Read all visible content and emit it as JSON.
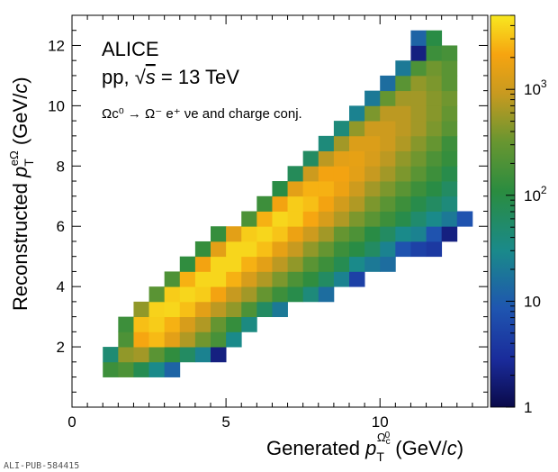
{
  "chart_data": {
    "type": "heatmap",
    "experiment": "ALICE",
    "system": "pp, √s = 13 TeV",
    "system_parts": {
      "prefix": "pp, ",
      "sqrt_symbol": "√",
      "var": "s",
      "suffix": " = 13 TeV"
    },
    "decay": "Ωc⁰ → Ω⁻ e⁺ νe and charge conj.",
    "xlabel": "Generated p_T^{Ωc⁰} (GeV/c)",
    "ylabel": "Reconstructed p_T^{eΩ} (GeV/c)",
    "xlabel_parts": {
      "pre": "Generated ",
      "p": "p",
      "sub": "T",
      "sup": "Ω",
      "supsub": "c",
      "supsup": "0",
      "post": " (GeV/",
      "c": "c",
      "close": ")"
    },
    "ylabel_parts": {
      "pre": "Reconstructed ",
      "p": "p",
      "sub": "T",
      "sup": "eΩ",
      "post": " (GeV/",
      "c": "c",
      "close": ")"
    },
    "xlim": [
      0,
      13.5
    ],
    "ylim": [
      0,
      13
    ],
    "x_ticks": [
      {
        "v": 0,
        "label": "0"
      },
      {
        "v": 5,
        "label": "5"
      },
      {
        "v": 10,
        "label": "10"
      }
    ],
    "y_ticks": [
      {
        "v": 2,
        "label": "2"
      },
      {
        "v": 4,
        "label": "4"
      },
      {
        "v": 6,
        "label": "6"
      },
      {
        "v": 8,
        "label": "8"
      },
      {
        "v": 10,
        "label": "10"
      },
      {
        "v": 12,
        "label": "12"
      }
    ],
    "z_scale": "log",
    "zlim": [
      1,
      5000
    ],
    "z_ticks": [
      {
        "v": 1,
        "label": "1"
      },
      {
        "v": 10,
        "label": "10"
      },
      {
        "v": 100,
        "label": "10",
        "exp": "2"
      },
      {
        "v": 1000,
        "label": "10",
        "exp": "3"
      }
    ],
    "bin_width_x": 0.5,
    "bin_width_y": 0.5,
    "x_bins_start": 1.0,
    "y_bins_start": 1.0,
    "rows": [
      {
        "y": 1.0,
        "x0": 1.0,
        "values": [
          150,
          200,
          80,
          30,
          12
        ]
      },
      {
        "y": 1.5,
        "x0": 1.0,
        "values": [
          45,
          500,
          600,
          250,
          120,
          60,
          25,
          2
        ]
      },
      {
        "y": 2.0,
        "x0": 1.5,
        "values": [
          200,
          2200,
          2800,
          1500,
          700,
          350,
          180,
          30
        ]
      },
      {
        "y": 2.5,
        "x0": 1.5,
        "values": [
          150,
          3000,
          3500,
          2500,
          1200,
          700,
          300,
          130,
          35
        ]
      },
      {
        "y": 3.0,
        "x0": 2.0,
        "values": [
          500,
          3800,
          4000,
          3000,
          1500,
          800,
          500,
          200,
          60,
          20
        ]
      },
      {
        "y": 3.5,
        "x0": 2.5,
        "values": [
          250,
          3500,
          4000,
          3500,
          2000,
          900,
          600,
          300,
          150,
          90,
          40,
          15
        ]
      },
      {
        "y": 4.0,
        "x0": 3.0,
        "values": [
          200,
          2500,
          4000,
          4000,
          2500,
          1200,
          700,
          400,
          200,
          120,
          60,
          25,
          5
        ]
      },
      {
        "y": 4.5,
        "x0": 3.5,
        "values": [
          120,
          2000,
          4000,
          4000,
          2500,
          1500,
          800,
          500,
          250,
          150,
          80,
          30,
          20,
          15
        ]
      },
      {
        "y": 5.0,
        "x0": 4.0,
        "values": [
          130,
          1500,
          4000,
          4000,
          3000,
          1600,
          900,
          500,
          300,
          150,
          100,
          60,
          25,
          8,
          5,
          4
        ]
      },
      {
        "y": 5.5,
        "x0": 4.5,
        "values": [
          130,
          1500,
          3500,
          4000,
          3200,
          1800,
          1000,
          600,
          300,
          200,
          100,
          60,
          30,
          25,
          8,
          2
        ]
      },
      {
        "y": 6.0,
        "x0": 5.5,
        "values": [
          200,
          2500,
          4000,
          3500,
          2200,
          1200,
          700,
          400,
          250,
          150,
          90,
          50,
          30,
          20,
          8
        ]
      },
      {
        "y": 6.5,
        "x0": 6.0,
        "values": [
          150,
          2000,
          3500,
          3000,
          2000,
          1100,
          700,
          400,
          250,
          150,
          90,
          60,
          40
        ]
      },
      {
        "y": 7.0,
        "x0": 6.5,
        "values": [
          100,
          1500,
          2500,
          2500,
          1800,
          1000,
          600,
          400,
          250,
          150,
          100,
          60
        ]
      },
      {
        "y": 7.5,
        "x0": 7.0,
        "values": [
          70,
          1000,
          2000,
          2000,
          1500,
          900,
          600,
          400,
          250,
          150,
          90
        ]
      },
      {
        "y": 8.0,
        "x0": 7.5,
        "values": [
          60,
          800,
          1500,
          1600,
          1200,
          800,
          500,
          350,
          200,
          130
        ]
      },
      {
        "y": 8.5,
        "x0": 8.0,
        "values": [
          40,
          600,
          1300,
          1300,
          1000,
          700,
          450,
          300,
          150
        ]
      },
      {
        "y": 9.0,
        "x0": 8.5,
        "values": [
          40,
          500,
          1000,
          1000,
          800,
          600,
          400,
          250
        ]
      },
      {
        "y": 9.5,
        "x0": 9.0,
        "values": [
          25,
          400,
          800,
          800,
          600,
          450,
          300
        ]
      },
      {
        "y": 10.0,
        "x0": 9.5,
        "values": [
          20,
          300,
          600,
          600,
          450,
          350
        ]
      },
      {
        "y": 10.5,
        "x0": 10.0,
        "values": [
          15,
          250,
          500,
          400,
          250
        ]
      },
      {
        "y": 11.0,
        "x0": 10.5,
        "values": [
          20,
          200,
          350,
          250
        ]
      },
      {
        "y": 11.5,
        "x0": 11.0,
        "values": [
          2,
          150,
          180
        ]
      },
      {
        "y": 12.0,
        "x0": 11.0,
        "values": [
          12,
          100
        ]
      }
    ]
  },
  "footer": "ALI-PUB-584415"
}
